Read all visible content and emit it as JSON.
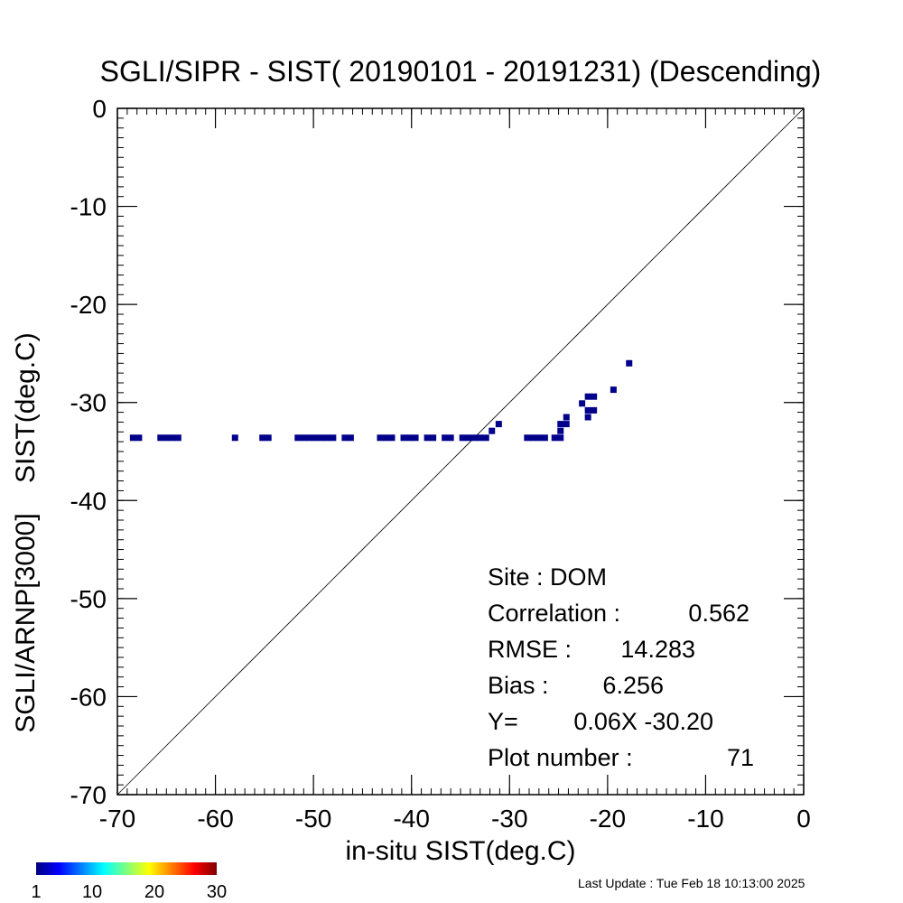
{
  "chart_data": {
    "type": "scatter",
    "title": "SGLI/SIPR - SIST( 20190101 - 20191231) (Descending)",
    "xlabel": "in-situ SIST(deg.C)",
    "ylabel": "SGLI/ARNP[3000]    SIST(deg.C)",
    "xlim": [
      -70,
      0
    ],
    "ylim": [
      -70,
      0
    ],
    "x_ticks": [
      "-70",
      "-60",
      "-50",
      "-40",
      "-30",
      "-20",
      "-10",
      "0"
    ],
    "y_ticks": [
      "-70",
      "-60",
      "-50",
      "-40",
      "-30",
      "-20",
      "-10",
      "0"
    ],
    "x_tick_values": [
      -70,
      -60,
      -50,
      -40,
      -30,
      -20,
      -10,
      0
    ],
    "y_tick_values": [
      -70,
      -60,
      -50,
      -40,
      -30,
      -20,
      -10,
      0
    ],
    "reference_line": "y = x",
    "grid": false,
    "points": [
      {
        "x": -68.4,
        "y": -33.6
      },
      {
        "x": -67.8,
        "y": -33.6
      },
      {
        "x": -65.6,
        "y": -33.6
      },
      {
        "x": -65.0,
        "y": -33.6
      },
      {
        "x": -64.4,
        "y": -33.6
      },
      {
        "x": -63.8,
        "y": -33.6
      },
      {
        "x": -58.0,
        "y": -33.6
      },
      {
        "x": -55.2,
        "y": -33.6
      },
      {
        "x": -54.6,
        "y": -33.6
      },
      {
        "x": -51.6,
        "y": -33.6
      },
      {
        "x": -51.0,
        "y": -33.6
      },
      {
        "x": -50.4,
        "y": -33.6
      },
      {
        "x": -49.8,
        "y": -33.6
      },
      {
        "x": -49.2,
        "y": -33.6
      },
      {
        "x": -48.6,
        "y": -33.6
      },
      {
        "x": -48.0,
        "y": -33.6
      },
      {
        "x": -46.8,
        "y": -33.6
      },
      {
        "x": -46.2,
        "y": -33.6
      },
      {
        "x": -43.2,
        "y": -33.6
      },
      {
        "x": -42.6,
        "y": -33.6
      },
      {
        "x": -42.0,
        "y": -33.6
      },
      {
        "x": -40.8,
        "y": -33.6
      },
      {
        "x": -40.2,
        "y": -33.6
      },
      {
        "x": -39.6,
        "y": -33.6
      },
      {
        "x": -38.4,
        "y": -33.6
      },
      {
        "x": -37.8,
        "y": -33.6
      },
      {
        "x": -36.6,
        "y": -33.6
      },
      {
        "x": -36.0,
        "y": -33.6
      },
      {
        "x": -34.8,
        "y": -33.6
      },
      {
        "x": -34.2,
        "y": -33.6
      },
      {
        "x": -33.6,
        "y": -33.6
      },
      {
        "x": -33.0,
        "y": -33.6
      },
      {
        "x": -32.4,
        "y": -33.6
      },
      {
        "x": -31.8,
        "y": -32.9
      },
      {
        "x": -31.1,
        "y": -32.2
      },
      {
        "x": -28.2,
        "y": -33.6
      },
      {
        "x": -27.6,
        "y": -33.6
      },
      {
        "x": -27.0,
        "y": -33.6
      },
      {
        "x": -26.4,
        "y": -33.6
      },
      {
        "x": -25.4,
        "y": -33.6
      },
      {
        "x": -24.8,
        "y": -33.6
      },
      {
        "x": -24.8,
        "y": -32.9
      },
      {
        "x": -24.8,
        "y": -32.2
      },
      {
        "x": -24.2,
        "y": -32.2
      },
      {
        "x": -24.2,
        "y": -31.5
      },
      {
        "x": -22.6,
        "y": -30.1
      },
      {
        "x": -22.0,
        "y": -31.5
      },
      {
        "x": -22.0,
        "y": -30.8
      },
      {
        "x": -22.0,
        "y": -29.4
      },
      {
        "x": -21.4,
        "y": -30.8
      },
      {
        "x": -21.4,
        "y": -29.4
      },
      {
        "x": -19.4,
        "y": -28.7
      },
      {
        "x": -17.8,
        "y": -26.0
      }
    ],
    "stats": [
      {
        "label": "Site : DOM",
        "value": ""
      },
      {
        "label": "Correlation :",
        "value": "0.562"
      },
      {
        "label": "RMSE :",
        "value": "14.283"
      },
      {
        "label": "Bias :",
        "value": "6.256"
      },
      {
        "label": "Y=",
        "value": "0.06X -30.20"
      },
      {
        "label": "Plot number :",
        "value": "71"
      }
    ],
    "colorbar": {
      "ticks": [
        "1",
        "10",
        "20",
        "30"
      ],
      "tick_values": [
        1,
        10,
        20,
        30
      ],
      "range": [
        1,
        30
      ],
      "colors": [
        "#00007f",
        "#0000ff",
        "#007fff",
        "#00ffff",
        "#7fff7f",
        "#ffff00",
        "#ff7f00",
        "#ff0000",
        "#7f0000"
      ]
    },
    "point_color": "#00008b"
  },
  "footer": "Last Update : Tue Feb 18 10:13:00 2025"
}
